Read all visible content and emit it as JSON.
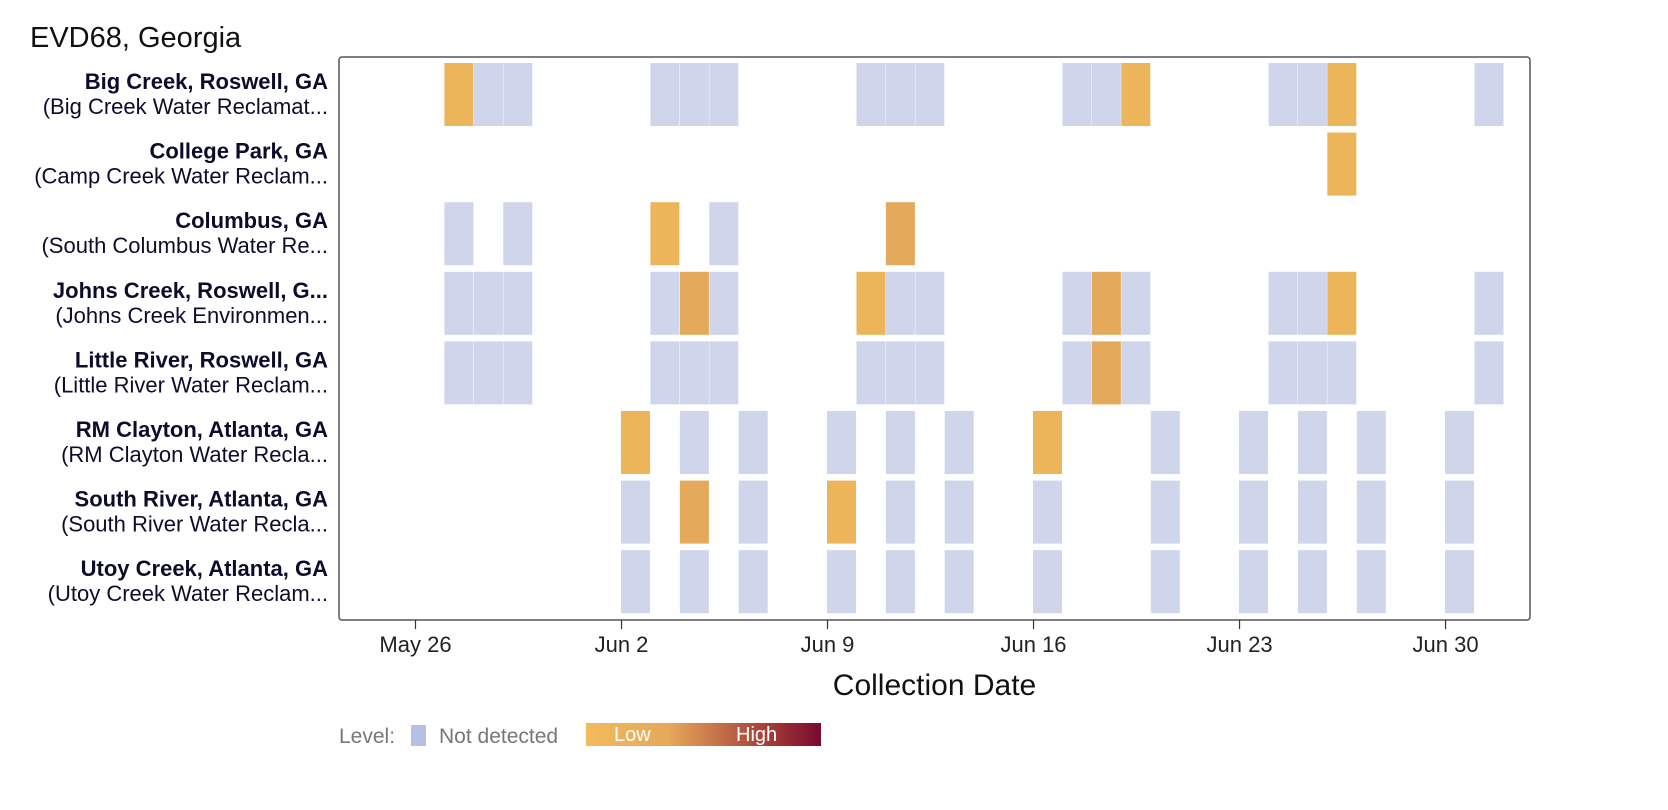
{
  "chart_data": {
    "type": "heatmap",
    "title": "EVD68, Georgia",
    "xlabel": "Collection Date",
    "ylabel": "",
    "x_ticks": [
      "May 26",
      "Jun 2",
      "Jun 9",
      "Jun 16",
      "Jun 23",
      "Jun 30"
    ],
    "x_range": [
      "2024-05-26",
      "2024-07-02"
    ],
    "legend": {
      "title": "Level:",
      "not_detected": "Not detected",
      "low": "Low",
      "high": "High"
    },
    "colors": {
      "not_detected": "#cfd6ec",
      "low": "#edb55a",
      "mid": "#e4a95a",
      "high": "#7a0a2e",
      "legend_swatch": "#b4c0e6"
    },
    "sites": [
      {
        "name": "Big Creek, Roswell, GA",
        "plant": "(Big Creek Water Reclamat...",
        "samples": [
          {
            "date": "2024-05-27",
            "level": "low"
          },
          {
            "date": "2024-05-28",
            "level": "nd"
          },
          {
            "date": "2024-05-29",
            "level": "nd"
          },
          {
            "date": "2024-06-03",
            "level": "nd"
          },
          {
            "date": "2024-06-04",
            "level": "nd"
          },
          {
            "date": "2024-06-05",
            "level": "nd"
          },
          {
            "date": "2024-06-10",
            "level": "nd"
          },
          {
            "date": "2024-06-11",
            "level": "nd"
          },
          {
            "date": "2024-06-12",
            "level": "nd"
          },
          {
            "date": "2024-06-17",
            "level": "nd"
          },
          {
            "date": "2024-06-18",
            "level": "nd"
          },
          {
            "date": "2024-06-19",
            "level": "low"
          },
          {
            "date": "2024-06-24",
            "level": "nd"
          },
          {
            "date": "2024-06-25",
            "level": "nd"
          },
          {
            "date": "2024-06-26",
            "level": "low"
          },
          {
            "date": "2024-07-01",
            "level": "nd"
          }
        ]
      },
      {
        "name": "College Park, GA",
        "plant": "(Camp Creek Water Reclam...",
        "samples": [
          {
            "date": "2024-06-26",
            "level": "low"
          }
        ]
      },
      {
        "name": "Columbus, GA",
        "plant": "(South Columbus Water Re...",
        "samples": [
          {
            "date": "2024-05-27",
            "level": "nd"
          },
          {
            "date": "2024-05-29",
            "level": "nd"
          },
          {
            "date": "2024-06-03",
            "level": "low"
          },
          {
            "date": "2024-06-05",
            "level": "nd"
          },
          {
            "date": "2024-06-11",
            "level": "mid"
          }
        ]
      },
      {
        "name": "Johns Creek, Roswell, G...",
        "plant": "(Johns Creek Environmen...",
        "samples": [
          {
            "date": "2024-05-27",
            "level": "nd"
          },
          {
            "date": "2024-05-28",
            "level": "nd"
          },
          {
            "date": "2024-05-29",
            "level": "nd"
          },
          {
            "date": "2024-06-03",
            "level": "nd"
          },
          {
            "date": "2024-06-04",
            "level": "mid"
          },
          {
            "date": "2024-06-05",
            "level": "nd"
          },
          {
            "date": "2024-06-10",
            "level": "low"
          },
          {
            "date": "2024-06-11",
            "level": "nd"
          },
          {
            "date": "2024-06-12",
            "level": "nd"
          },
          {
            "date": "2024-06-17",
            "level": "nd"
          },
          {
            "date": "2024-06-18",
            "level": "mid"
          },
          {
            "date": "2024-06-19",
            "level": "nd"
          },
          {
            "date": "2024-06-24",
            "level": "nd"
          },
          {
            "date": "2024-06-25",
            "level": "nd"
          },
          {
            "date": "2024-06-26",
            "level": "low"
          },
          {
            "date": "2024-07-01",
            "level": "nd"
          }
        ]
      },
      {
        "name": "Little River, Roswell, GA",
        "plant": "(Little River Water Reclam...",
        "samples": [
          {
            "date": "2024-05-27",
            "level": "nd"
          },
          {
            "date": "2024-05-28",
            "level": "nd"
          },
          {
            "date": "2024-05-29",
            "level": "nd"
          },
          {
            "date": "2024-06-03",
            "level": "nd"
          },
          {
            "date": "2024-06-04",
            "level": "nd"
          },
          {
            "date": "2024-06-05",
            "level": "nd"
          },
          {
            "date": "2024-06-10",
            "level": "nd"
          },
          {
            "date": "2024-06-11",
            "level": "nd"
          },
          {
            "date": "2024-06-12",
            "level": "nd"
          },
          {
            "date": "2024-06-17",
            "level": "nd"
          },
          {
            "date": "2024-06-18",
            "level": "mid"
          },
          {
            "date": "2024-06-19",
            "level": "nd"
          },
          {
            "date": "2024-06-24",
            "level": "nd"
          },
          {
            "date": "2024-06-25",
            "level": "nd"
          },
          {
            "date": "2024-06-26",
            "level": "nd"
          },
          {
            "date": "2024-07-01",
            "level": "nd"
          }
        ]
      },
      {
        "name": "RM Clayton, Atlanta, GA",
        "plant": "(RM Clayton Water Recla...",
        "samples": [
          {
            "date": "2024-06-02",
            "level": "low"
          },
          {
            "date": "2024-06-04",
            "level": "nd"
          },
          {
            "date": "2024-06-06",
            "level": "nd"
          },
          {
            "date": "2024-06-09",
            "level": "nd"
          },
          {
            "date": "2024-06-11",
            "level": "nd"
          },
          {
            "date": "2024-06-13",
            "level": "nd"
          },
          {
            "date": "2024-06-16",
            "level": "low"
          },
          {
            "date": "2024-06-20",
            "level": "nd"
          },
          {
            "date": "2024-06-23",
            "level": "nd"
          },
          {
            "date": "2024-06-25",
            "level": "nd"
          },
          {
            "date": "2024-06-27",
            "level": "nd"
          },
          {
            "date": "2024-06-30",
            "level": "nd"
          }
        ]
      },
      {
        "name": "South River, Atlanta, GA",
        "plant": "(South River Water Recla...",
        "samples": [
          {
            "date": "2024-06-02",
            "level": "nd"
          },
          {
            "date": "2024-06-04",
            "level": "mid"
          },
          {
            "date": "2024-06-06",
            "level": "nd"
          },
          {
            "date": "2024-06-09",
            "level": "low"
          },
          {
            "date": "2024-06-11",
            "level": "nd"
          },
          {
            "date": "2024-06-13",
            "level": "nd"
          },
          {
            "date": "2024-06-16",
            "level": "nd"
          },
          {
            "date": "2024-06-20",
            "level": "nd"
          },
          {
            "date": "2024-06-23",
            "level": "nd"
          },
          {
            "date": "2024-06-25",
            "level": "nd"
          },
          {
            "date": "2024-06-27",
            "level": "nd"
          },
          {
            "date": "2024-06-30",
            "level": "nd"
          }
        ]
      },
      {
        "name": "Utoy Creek, Atlanta, GA",
        "plant": "(Utoy Creek Water Reclam...",
        "samples": [
          {
            "date": "2024-06-02",
            "level": "nd"
          },
          {
            "date": "2024-06-04",
            "level": "nd"
          },
          {
            "date": "2024-06-06",
            "level": "nd"
          },
          {
            "date": "2024-06-09",
            "level": "nd"
          },
          {
            "date": "2024-06-11",
            "level": "nd"
          },
          {
            "date": "2024-06-13",
            "level": "nd"
          },
          {
            "date": "2024-06-16",
            "level": "nd"
          },
          {
            "date": "2024-06-20",
            "level": "nd"
          },
          {
            "date": "2024-06-23",
            "level": "nd"
          },
          {
            "date": "2024-06-25",
            "level": "nd"
          },
          {
            "date": "2024-06-27",
            "level": "nd"
          },
          {
            "date": "2024-06-30",
            "level": "nd"
          }
        ]
      }
    ]
  }
}
